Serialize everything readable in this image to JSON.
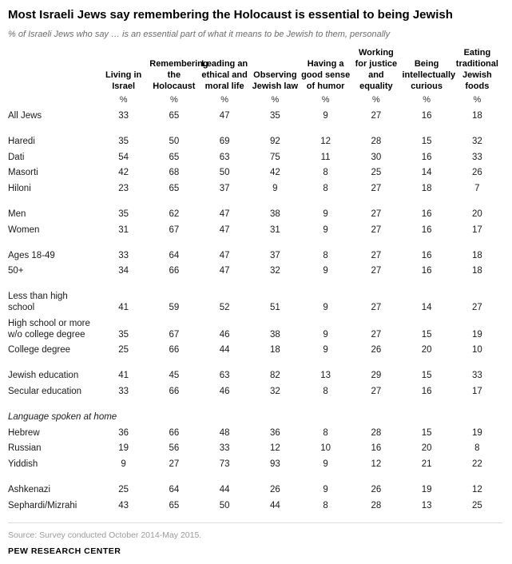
{
  "chart_data": {
    "type": "table",
    "title": "Most Israeli Jews say remembering the Holocaust is essential to being Jewish",
    "subtitle": "% of Israeli Jews who say … is an essential part of what it means to be Jewish to them, personally",
    "unit": "%",
    "columns": [
      "Living in Israel",
      "Remembering the Holocaust",
      "Leading an ethical and moral life",
      "Observing Jewish law",
      "Having a good sense of humor",
      "Working for justice and equality",
      "Being intellectually curious",
      "Eating traditional Jewish foods"
    ],
    "groups": [
      {
        "rows": [
          {
            "label": "All Jews",
            "values": [
              33,
              65,
              47,
              35,
              9,
              27,
              16,
              18
            ]
          }
        ]
      },
      {
        "rows": [
          {
            "label": "Haredi",
            "values": [
              35,
              50,
              69,
              92,
              12,
              28,
              15,
              32
            ]
          },
          {
            "label": "Dati",
            "values": [
              54,
              65,
              63,
              75,
              11,
              30,
              16,
              33
            ]
          },
          {
            "label": "Masorti",
            "values": [
              42,
              68,
              50,
              42,
              8,
              25,
              14,
              26
            ]
          },
          {
            "label": "Hiloni",
            "values": [
              23,
              65,
              37,
              9,
              8,
              27,
              18,
              7
            ]
          }
        ]
      },
      {
        "rows": [
          {
            "label": "Men",
            "values": [
              35,
              62,
              47,
              38,
              9,
              27,
              16,
              20
            ]
          },
          {
            "label": "Women",
            "values": [
              31,
              67,
              47,
              31,
              9,
              27,
              16,
              17
            ]
          }
        ]
      },
      {
        "rows": [
          {
            "label": "Ages 18-49",
            "values": [
              33,
              64,
              47,
              37,
              8,
              27,
              16,
              18
            ]
          },
          {
            "label": "50+",
            "values": [
              34,
              66,
              47,
              32,
              9,
              27,
              16,
              18
            ]
          }
        ]
      },
      {
        "rows": [
          {
            "label": "Less than high school",
            "values": [
              41,
              59,
              52,
              51,
              9,
              27,
              14,
              27
            ]
          },
          {
            "label": "High school or more w/o college degree",
            "values": [
              35,
              67,
              46,
              38,
              9,
              27,
              15,
              19
            ]
          },
          {
            "label": "College degree",
            "values": [
              25,
              66,
              44,
              18,
              9,
              26,
              20,
              10
            ]
          }
        ]
      },
      {
        "rows": [
          {
            "label": "Jewish education",
            "values": [
              41,
              45,
              63,
              82,
              13,
              29,
              15,
              33
            ]
          },
          {
            "label": "Secular education",
            "values": [
              33,
              66,
              46,
              32,
              8,
              27,
              16,
              17
            ]
          }
        ]
      },
      {
        "rows": [
          {
            "label": "Language spoken at home",
            "heading": true,
            "values": []
          },
          {
            "label": "Hebrew",
            "values": [
              36,
              66,
              48,
              36,
              8,
              28,
              15,
              19
            ]
          },
          {
            "label": "Russian",
            "values": [
              19,
              56,
              33,
              12,
              10,
              16,
              20,
              8
            ]
          },
          {
            "label": "Yiddish",
            "values": [
              9,
              27,
              73,
              93,
              9,
              12,
              21,
              22
            ]
          }
        ]
      },
      {
        "rows": [
          {
            "label": "Ashkenazi",
            "values": [
              25,
              64,
              44,
              26,
              9,
              26,
              19,
              12
            ]
          },
          {
            "label": "Sephardi/Mizrahi",
            "values": [
              43,
              65,
              50,
              44,
              8,
              28,
              13,
              25
            ]
          }
        ]
      }
    ],
    "source": "Source: Survey conducted October 2014-May 2015.",
    "footer": "PEW RESEARCH CENTER"
  }
}
